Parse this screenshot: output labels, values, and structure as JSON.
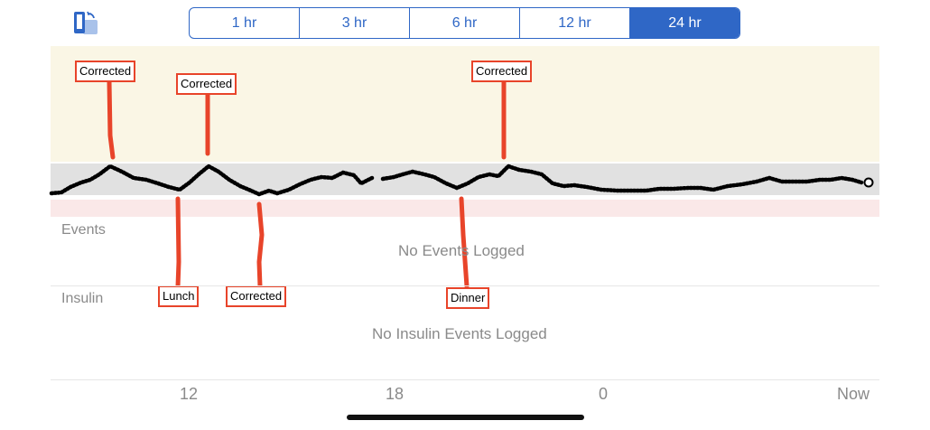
{
  "toolbar": {
    "rotate_icon": "rotate-device-icon",
    "ranges": [
      "1 hr",
      "3 hr",
      "6 hr",
      "12 hr",
      "24 hr"
    ],
    "active_range": "24 hr"
  },
  "chart": {
    "x_ticks": [
      "12",
      "18",
      "0",
      "Now"
    ]
  },
  "events": {
    "title": "Events",
    "empty_message": "No Events Logged"
  },
  "insulin": {
    "title": "Insulin",
    "empty_message": "No Insulin Events Logged"
  },
  "annotations": {
    "a1": "Corrected",
    "a2": "Corrected",
    "a3": "Corrected",
    "b1": "Lunch",
    "b2": "Corrected",
    "b3": "Dinner"
  },
  "colors": {
    "accent": "#2f67c6",
    "annotation": "#e8442a",
    "high_band": "#faf6e5",
    "target_band": "#e1e1e1",
    "low_band": "#fae8e8"
  }
}
